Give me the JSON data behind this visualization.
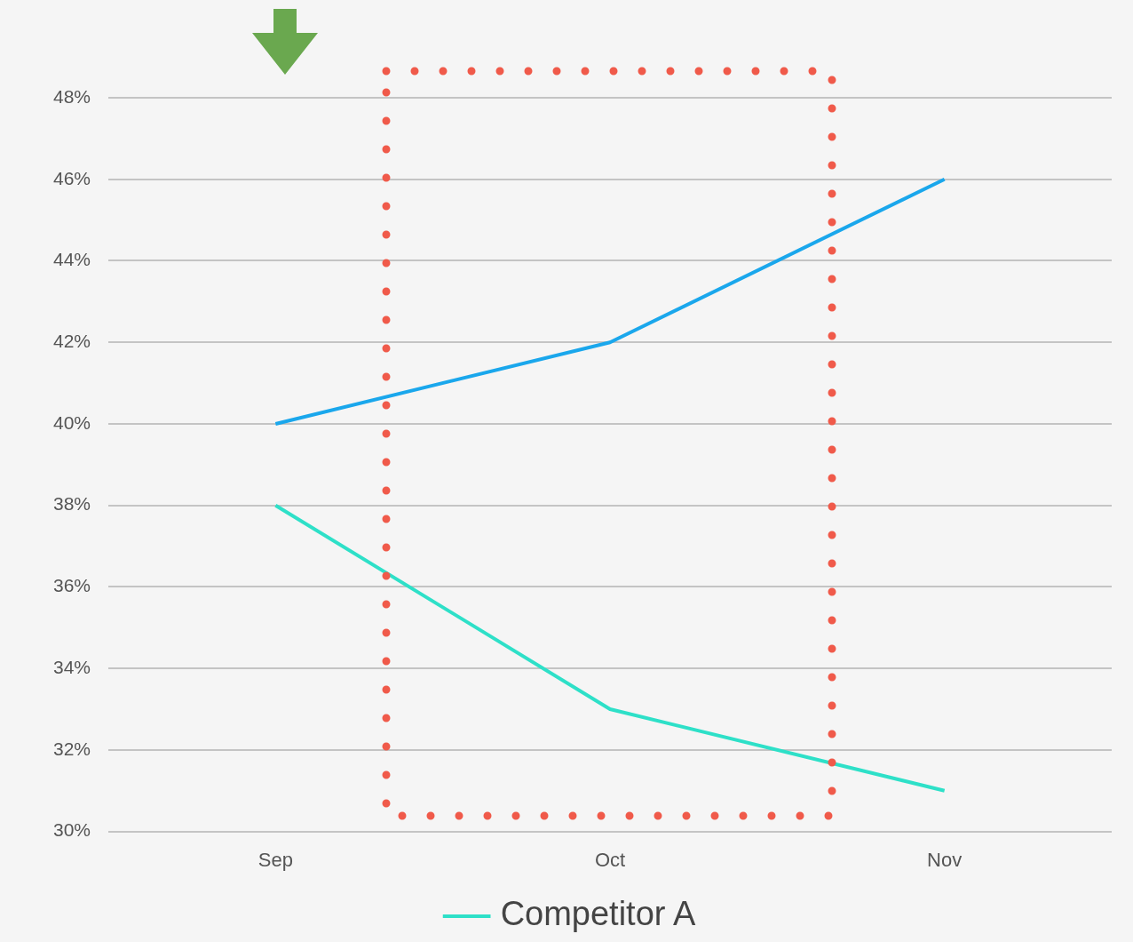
{
  "chart_data": {
    "type": "line",
    "categories": [
      "Sep",
      "Oct",
      "Nov"
    ],
    "series": [
      {
        "color": "#1aa7ec",
        "values": [
          40,
          42,
          46
        ]
      },
      {
        "name": "Competitor A",
        "color": "#2ee0c8",
        "values": [
          38,
          33,
          31
        ]
      }
    ],
    "ylim": [
      30,
      48
    ],
    "yticks": [
      {
        "value": 30,
        "label": "30%"
      },
      {
        "value": 32,
        "label": "32%"
      },
      {
        "value": 34,
        "label": "34%"
      },
      {
        "value": 36,
        "label": "36%"
      },
      {
        "value": 38,
        "label": "38%"
      },
      {
        "value": 40,
        "label": "40%"
      },
      {
        "value": 42,
        "label": "42%"
      },
      {
        "value": 44,
        "label": "44%"
      },
      {
        "value": 46,
        "label": "46%"
      },
      {
        "value": 48,
        "label": "48%"
      }
    ],
    "grid": "y",
    "legend": "bottom",
    "marker": "none",
    "line_style": "solid"
  }
}
